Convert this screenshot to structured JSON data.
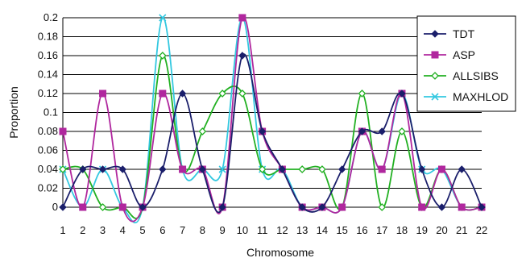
{
  "chart_data": {
    "type": "line",
    "title": "",
    "xlabel": "Chromosome",
    "ylabel": "Proportion",
    "x": [
      1,
      2,
      3,
      4,
      5,
      6,
      7,
      8,
      9,
      10,
      11,
      12,
      13,
      14,
      15,
      16,
      17,
      18,
      19,
      20,
      21,
      22
    ],
    "ylim": [
      0,
      0.2
    ],
    "yticks": [
      "0",
      "0.02",
      "0.04",
      "0.06",
      "0.08",
      "0.1",
      "0.12",
      "0.14",
      "0.16",
      "0.18",
      "0.2"
    ],
    "xticks": [
      "1",
      "2",
      "3",
      "4",
      "5",
      "6",
      "7",
      "8",
      "9",
      "10",
      "11",
      "12",
      "13",
      "14",
      "15",
      "16",
      "17",
      "18",
      "19",
      "20",
      "21",
      "22"
    ],
    "grid": "horizontal",
    "legend_position": "top-right",
    "series": [
      {
        "name": "TDT",
        "color": "#1b1f6b",
        "marker": "diamond",
        "values": [
          0,
          0.04,
          0.04,
          0.04,
          0,
          0.04,
          0.12,
          0.04,
          0,
          0.16,
          0.08,
          0.04,
          0,
          0,
          0.04,
          0.08,
          0.08,
          0.12,
          0.04,
          0,
          0.04,
          0
        ]
      },
      {
        "name": "ASP",
        "color": "#b0279e",
        "marker": "square",
        "values": [
          0.08,
          0,
          0.12,
          0,
          0,
          0.12,
          0.04,
          0.04,
          0,
          0.2,
          0.08,
          0.04,
          0,
          0,
          0,
          0.08,
          0.04,
          0.12,
          0,
          0.04,
          0,
          0
        ]
      },
      {
        "name": "ALLSIBS",
        "color": "#22b022",
        "marker": "diamond-open",
        "values": [
          0.04,
          0.04,
          0,
          0,
          0,
          0.16,
          0.04,
          0.08,
          0.12,
          0.12,
          0.04,
          0.04,
          0.04,
          0.04,
          0,
          0.12,
          0,
          0.08,
          0,
          0.04,
          0,
          0
        ]
      },
      {
        "name": "MAXHLOD",
        "color": "#33c8e0",
        "marker": "x",
        "values": [
          0.04,
          0,
          0.04,
          0,
          0,
          0.2,
          0.04,
          0.04,
          0.04,
          0.2,
          0.04,
          0.04,
          0,
          0,
          0,
          0.08,
          0.04,
          0.12,
          0.04,
          0.04,
          0,
          0
        ]
      }
    ]
  }
}
